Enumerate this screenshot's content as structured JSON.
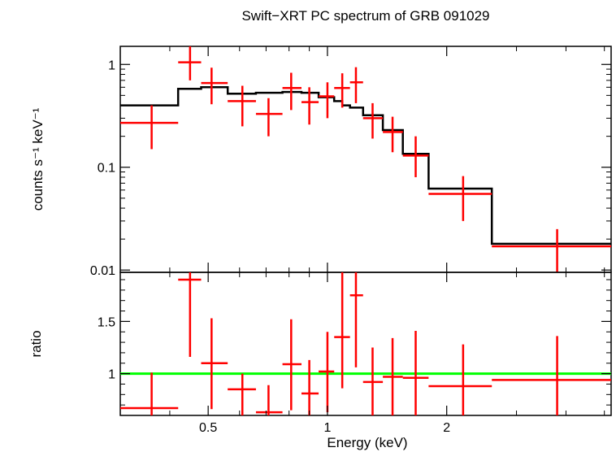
{
  "chart_data": [
    {
      "type": "scatter",
      "title": "Swift−XRT PC spectrum of GRB 091029",
      "xlabel": "",
      "ylabel": "counts s⁻¹ keV⁻¹",
      "xscale": "log",
      "yscale": "log",
      "xlim": [
        0.3,
        5.2
      ],
      "ylim": [
        0.0095,
        1.5
      ],
      "yticks": [
        0.01,
        0.1,
        1
      ],
      "ytick_labels": [
        "0.01",
        "0.1",
        "1"
      ],
      "grid": false,
      "colors": {
        "data": "#ff0000",
        "model": "#000000"
      },
      "series": [
        {
          "kind": "data",
          "points": [
            {
              "x": 0.36,
              "xlo": 0.3,
              "xhi": 0.42,
              "y": 0.27,
              "ylo": 0.15,
              "yhi": 0.4
            },
            {
              "x": 0.45,
              "xlo": 0.42,
              "xhi": 0.48,
              "y": 1.05,
              "ylo": 0.7,
              "yhi": 1.5
            },
            {
              "x": 0.51,
              "xlo": 0.48,
              "xhi": 0.56,
              "y": 0.66,
              "ylo": 0.41,
              "yhi": 0.93
            },
            {
              "x": 0.61,
              "xlo": 0.56,
              "xhi": 0.66,
              "y": 0.44,
              "ylo": 0.25,
              "yhi": 0.62
            },
            {
              "x": 0.71,
              "xlo": 0.66,
              "xhi": 0.77,
              "y": 0.33,
              "ylo": 0.2,
              "yhi": 0.47
            },
            {
              "x": 0.81,
              "xlo": 0.77,
              "xhi": 0.86,
              "y": 0.59,
              "ylo": 0.36,
              "yhi": 0.83
            },
            {
              "x": 0.9,
              "xlo": 0.86,
              "xhi": 0.95,
              "y": 0.43,
              "ylo": 0.26,
              "yhi": 0.6
            },
            {
              "x": 1.0,
              "xlo": 0.95,
              "xhi": 1.04,
              "y": 0.49,
              "ylo": 0.3,
              "yhi": 0.67
            },
            {
              "x": 1.09,
              "xlo": 1.04,
              "xhi": 1.14,
              "y": 0.59,
              "ylo": 0.38,
              "yhi": 0.82
            },
            {
              "x": 1.18,
              "xlo": 1.14,
              "xhi": 1.23,
              "y": 0.67,
              "ylo": 0.42,
              "yhi": 0.94
            },
            {
              "x": 1.3,
              "xlo": 1.23,
              "xhi": 1.38,
              "y": 0.3,
              "ylo": 0.19,
              "yhi": 0.42
            },
            {
              "x": 1.46,
              "xlo": 1.38,
              "xhi": 1.55,
              "y": 0.22,
              "ylo": 0.14,
              "yhi": 0.31
            },
            {
              "x": 1.67,
              "xlo": 1.55,
              "xhi": 1.8,
              "y": 0.13,
              "ylo": 0.08,
              "yhi": 0.2
            },
            {
              "x": 2.2,
              "xlo": 1.8,
              "xhi": 2.6,
              "y": 0.055,
              "ylo": 0.03,
              "yhi": 0.082
            },
            {
              "x": 3.8,
              "xlo": 2.6,
              "xhi": 5.2,
              "y": 0.017,
              "ylo": 0.0093,
              "yhi": 0.025
            }
          ]
        },
        {
          "kind": "model",
          "steps": [
            {
              "x1": 0.3,
              "x2": 0.42,
              "y": 0.4
            },
            {
              "x1": 0.42,
              "x2": 0.48,
              "y": 0.58
            },
            {
              "x1": 0.48,
              "x2": 0.56,
              "y": 0.6
            },
            {
              "x1": 0.56,
              "x2": 0.66,
              "y": 0.52
            },
            {
              "x1": 0.66,
              "x2": 0.77,
              "y": 0.53
            },
            {
              "x1": 0.77,
              "x2": 0.86,
              "y": 0.54
            },
            {
              "x1": 0.86,
              "x2": 0.95,
              "y": 0.53
            },
            {
              "x1": 0.95,
              "x2": 1.04,
              "y": 0.48
            },
            {
              "x1": 1.04,
              "x2": 1.09,
              "y": 0.44
            },
            {
              "x1": 1.09,
              "x2": 1.14,
              "y": 0.4
            },
            {
              "x1": 1.14,
              "x2": 1.23,
              "y": 0.38
            },
            {
              "x1": 1.23,
              "x2": 1.38,
              "y": 0.32
            },
            {
              "x1": 1.38,
              "x2": 1.55,
              "y": 0.23
            },
            {
              "x1": 1.55,
              "x2": 1.8,
              "y": 0.135
            },
            {
              "x1": 1.8,
              "x2": 2.6,
              "y": 0.062
            },
            {
              "x1": 2.6,
              "x2": 5.2,
              "y": 0.018
            }
          ]
        }
      ]
    },
    {
      "type": "scatter",
      "xlabel": "Energy (keV)",
      "ylabel": "ratio",
      "xscale": "log",
      "xlim": [
        0.3,
        5.2
      ],
      "ylim": [
        0.6,
        1.97
      ],
      "xticks": [
        0.5,
        1,
        2
      ],
      "xtick_labels": [
        "0.5",
        "1",
        "2"
      ],
      "yticks": [
        1,
        1.5
      ],
      "ytick_labels": [
        "1",
        "1.5"
      ],
      "grid": false,
      "reference_line": {
        "y": 1,
        "color": "#00ff00"
      },
      "colors": {
        "data": "#ff0000"
      },
      "series": [
        {
          "kind": "ratio",
          "points": [
            {
              "x": 0.36,
              "xlo": 0.3,
              "xhi": 0.42,
              "y": 0.67,
              "ylo": 0.55,
              "yhi": 1.01
            },
            {
              "x": 0.45,
              "xlo": 0.42,
              "xhi": 0.48,
              "y": 1.9,
              "ylo": 1.16,
              "yhi": 1.97
            },
            {
              "x": 0.51,
              "xlo": 0.48,
              "xhi": 0.56,
              "y": 1.1,
              "ylo": 0.66,
              "yhi": 1.53
            },
            {
              "x": 0.61,
              "xlo": 0.56,
              "xhi": 0.66,
              "y": 0.85,
              "ylo": 0.6,
              "yhi": 1.0
            },
            {
              "x": 0.71,
              "xlo": 0.66,
              "xhi": 0.77,
              "y": 0.63,
              "ylo": 0.6,
              "yhi": 0.89
            },
            {
              "x": 0.81,
              "xlo": 0.77,
              "xhi": 0.86,
              "y": 1.09,
              "ylo": 0.65,
              "yhi": 1.52
            },
            {
              "x": 0.9,
              "xlo": 0.86,
              "xhi": 0.95,
              "y": 0.81,
              "ylo": 0.6,
              "yhi": 1.13
            },
            {
              "x": 1.0,
              "xlo": 0.95,
              "xhi": 1.04,
              "y": 1.02,
              "ylo": 0.63,
              "yhi": 1.4
            },
            {
              "x": 1.09,
              "xlo": 1.04,
              "xhi": 1.14,
              "y": 1.35,
              "ylo": 0.86,
              "yhi": 1.97
            },
            {
              "x": 1.18,
              "xlo": 1.14,
              "xhi": 1.23,
              "y": 1.75,
              "ylo": 1.06,
              "yhi": 1.97
            },
            {
              "x": 1.3,
              "xlo": 1.23,
              "xhi": 1.38,
              "y": 0.92,
              "ylo": 0.59,
              "yhi": 1.25
            },
            {
              "x": 1.46,
              "xlo": 1.38,
              "xhi": 1.55,
              "y": 0.97,
              "ylo": 0.6,
              "yhi": 1.34
            },
            {
              "x": 1.67,
              "xlo": 1.55,
              "xhi": 1.8,
              "y": 0.96,
              "ylo": 0.6,
              "yhi": 1.41
            },
            {
              "x": 2.2,
              "xlo": 1.8,
              "xhi": 2.6,
              "y": 0.88,
              "ylo": 0.55,
              "yhi": 1.28
            },
            {
              "x": 3.8,
              "xlo": 2.6,
              "xhi": 5.2,
              "y": 0.94,
              "ylo": 0.55,
              "yhi": 1.36
            }
          ]
        }
      ]
    }
  ]
}
